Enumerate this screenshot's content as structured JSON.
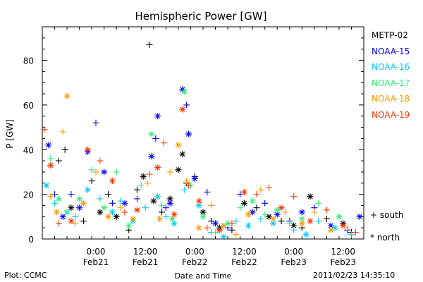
{
  "chart_data": {
    "type": "scatter",
    "title": "Hemispheric Power [GW]",
    "ylabel": "P [GW]",
    "xlabel": "Date and Time",
    "ylim": [
      0,
      95
    ],
    "yticks": [
      0,
      20,
      40,
      60,
      80
    ],
    "xlim": [
      "2011-02-20T11:00",
      "2011-02-23T17:00"
    ],
    "xticks": [
      {
        "time": "2011-02-21T00:00",
        "label1": "0:00",
        "label2": "Feb21"
      },
      {
        "time": "2011-02-21T12:00",
        "label1": "12:00",
        "label2": "Feb21"
      },
      {
        "time": "2011-02-22T00:00",
        "label1": "0:00",
        "label2": "Feb22"
      },
      {
        "time": "2011-02-22T12:00",
        "label1": "12:00",
        "label2": "Feb22"
      },
      {
        "time": "2011-02-23T00:00",
        "label1": "0:00",
        "label2": "Feb23"
      },
      {
        "time": "2011-02-23T12:00",
        "label1": "12:00",
        "label2": "Feb23"
      }
    ],
    "legend_position": "right",
    "symbol_key": {
      "south": "+ south",
      "north": "* north"
    },
    "series": [
      {
        "name": "METP-02",
        "color": "#000000",
        "points": [
          [
            "2011-02-20T15:00",
            35,
            "+"
          ],
          [
            "2011-02-20T16:30",
            40,
            "+"
          ],
          [
            "2011-02-20T18:00",
            14,
            "*"
          ],
          [
            "2011-02-20T21:00",
            8,
            "+"
          ],
          [
            "2011-02-20T23:00",
            26,
            "+"
          ],
          [
            "2011-02-21T01:00",
            12,
            "*"
          ],
          [
            "2011-02-21T03:00",
            20,
            "+"
          ],
          [
            "2011-02-21T05:00",
            10,
            "*"
          ],
          [
            "2011-02-21T08:00",
            4,
            "+"
          ],
          [
            "2011-02-21T10:00",
            22,
            "+"
          ],
          [
            "2011-02-21T11:30",
            28,
            "*"
          ],
          [
            "2011-02-21T13:00",
            87,
            "+"
          ],
          [
            "2011-02-21T14:00",
            17,
            "*"
          ],
          [
            "2011-02-21T16:00",
            12,
            "+"
          ],
          [
            "2011-02-21T18:00",
            18,
            "*"
          ],
          [
            "2011-02-21T20:00",
            31,
            "*"
          ],
          [
            "2011-02-21T21:00",
            38,
            "*"
          ],
          [
            "2011-02-21T22:00",
            25,
            "+"
          ],
          [
            "2011-02-22T00:00",
            28,
            "+"
          ],
          [
            "2011-02-22T02:00",
            12,
            "*"
          ],
          [
            "2011-02-22T04:00",
            8,
            "+"
          ],
          [
            "2011-02-22T06:00",
            5,
            "*"
          ],
          [
            "2011-02-22T09:00",
            4,
            "+"
          ],
          [
            "2011-02-22T12:00",
            16,
            "*"
          ],
          [
            "2011-02-22T15:00",
            14,
            "+"
          ],
          [
            "2011-02-22T18:00",
            10,
            "*"
          ],
          [
            "2011-02-22T21:00",
            8,
            "+"
          ],
          [
            "2011-02-23T00:00",
            6,
            "*"
          ],
          [
            "2011-02-23T02:00",
            5,
            "+"
          ],
          [
            "2011-02-23T04:00",
            19,
            "*"
          ],
          [
            "2011-02-23T08:00",
            9,
            "+"
          ],
          [
            "2011-02-23T12:00",
            7,
            "*"
          ],
          [
            "2011-02-23T14:00",
            3,
            "+"
          ]
        ]
      },
      {
        "name": "NOAA-15",
        "color": "#0000ff",
        "points": [
          [
            "2011-02-20T12:30",
            42,
            "*"
          ],
          [
            "2011-02-20T14:00",
            20,
            "+"
          ],
          [
            "2011-02-20T16:00",
            10,
            "*"
          ],
          [
            "2011-02-20T18:00",
            20,
            "+"
          ],
          [
            "2011-02-20T20:00",
            14,
            "*"
          ],
          [
            "2011-02-20T22:00",
            39,
            "*"
          ],
          [
            "2011-02-21T00:00",
            52,
            "+"
          ],
          [
            "2011-02-21T02:00",
            30,
            "*"
          ],
          [
            "2011-02-21T04:00",
            16,
            "+"
          ],
          [
            "2011-02-21T07:00",
            16,
            "*"
          ],
          [
            "2011-02-21T10:00",
            18,
            "+"
          ],
          [
            "2011-02-21T13:30",
            37,
            "*"
          ],
          [
            "2011-02-21T14:30",
            45,
            "+"
          ],
          [
            "2011-02-21T15:00",
            55,
            "*"
          ],
          [
            "2011-02-21T17:00",
            14,
            "+"
          ],
          [
            "2011-02-21T18:00",
            16,
            "*"
          ],
          [
            "2011-02-21T21:00",
            67,
            "*"
          ],
          [
            "2011-02-21T22:00",
            60,
            "+"
          ],
          [
            "2011-02-21T22:30",
            47,
            "*"
          ],
          [
            "2011-02-22T00:00",
            27,
            "*"
          ],
          [
            "2011-02-22T03:00",
            21,
            "+"
          ],
          [
            "2011-02-22T05:00",
            7,
            "*"
          ],
          [
            "2011-02-22T08:00",
            5,
            "+"
          ],
          [
            "2011-02-22T11:00",
            20,
            "+"
          ],
          [
            "2011-02-22T14:00",
            12,
            "*"
          ],
          [
            "2011-02-22T17:00",
            16,
            "+"
          ],
          [
            "2011-02-22T20:00",
            11,
            "*"
          ],
          [
            "2011-02-22T23:00",
            8,
            "+"
          ],
          [
            "2011-02-23T02:00",
            12,
            "*"
          ],
          [
            "2011-02-23T05:00",
            14,
            "+"
          ],
          [
            "2011-02-23T09:00",
            6,
            "*"
          ],
          [
            "2011-02-23T13:00",
            4,
            "+"
          ],
          [
            "2011-02-23T16:00",
            10,
            "*"
          ]
        ]
      },
      {
        "name": "NOAA-16",
        "color": "#00c8ff",
        "points": [
          [
            "2011-02-20T12:00",
            24,
            "*"
          ],
          [
            "2011-02-20T14:00",
            16,
            "+"
          ],
          [
            "2011-02-20T17:00",
            12,
            "*"
          ],
          [
            "2011-02-20T19:00",
            10,
            "+"
          ],
          [
            "2011-02-20T22:00",
            22,
            "*"
          ],
          [
            "2011-02-21T01:00",
            18,
            "+"
          ],
          [
            "2011-02-21T04:00",
            12,
            "*"
          ],
          [
            "2011-02-21T06:00",
            17,
            "+"
          ],
          [
            "2011-02-21T09:00",
            8,
            "*"
          ],
          [
            "2011-02-21T12:00",
            14,
            "+"
          ],
          [
            "2011-02-21T15:00",
            19,
            "*"
          ],
          [
            "2011-02-21T17:00",
            10,
            "+"
          ],
          [
            "2011-02-21T19:00",
            7,
            "*"
          ],
          [
            "2011-02-21T21:30",
            22,
            "+"
          ],
          [
            "2011-02-22T01:00",
            15,
            "*"
          ],
          [
            "2011-02-22T04:00",
            3,
            "+"
          ],
          [
            "2011-02-22T07:00",
            1,
            "*"
          ],
          [
            "2011-02-22T10:00",
            8,
            "+"
          ],
          [
            "2011-02-22T13:00",
            6,
            "*"
          ],
          [
            "2011-02-22T16:00",
            9,
            "+"
          ],
          [
            "2011-02-22T19:00",
            7,
            "*"
          ],
          [
            "2011-02-23T00:00",
            4,
            "+"
          ],
          [
            "2011-02-23T03:00",
            2,
            "*"
          ],
          [
            "2011-02-23T06:00",
            8,
            "+"
          ],
          [
            "2011-02-23T10:00",
            5,
            "*"
          ],
          [
            "2011-02-23T14:00",
            2,
            "+"
          ]
        ]
      },
      {
        "name": "NOAA-17",
        "color": "#33ee77",
        "points": [
          [
            "2011-02-20T13:00",
            36,
            "+"
          ],
          [
            "2011-02-20T15:00",
            18,
            "*"
          ],
          [
            "2011-02-20T17:00",
            12,
            "+"
          ],
          [
            "2011-02-20T20:00",
            18,
            "*"
          ],
          [
            "2011-02-20T23:00",
            31,
            "+"
          ],
          [
            "2011-02-21T02:00",
            14,
            "*"
          ],
          [
            "2011-02-21T05:00",
            30,
            "+"
          ],
          [
            "2011-02-21T08:00",
            6,
            "*"
          ],
          [
            "2011-02-21T11:00",
            24,
            "+"
          ],
          [
            "2011-02-21T13:30",
            47,
            "*"
          ],
          [
            "2011-02-21T16:00",
            15,
            "+"
          ],
          [
            "2011-02-21T18:30",
            9,
            "*"
          ],
          [
            "2011-02-21T21:30",
            66,
            "*"
          ],
          [
            "2011-02-21T23:00",
            24,
            "+"
          ],
          [
            "2011-02-22T02:00",
            10,
            "*"
          ],
          [
            "2011-02-22T05:00",
            3,
            "+"
          ],
          [
            "2011-02-22T08:00",
            7,
            "*"
          ],
          [
            "2011-02-22T11:00",
            14,
            "+"
          ],
          [
            "2011-02-22T14:00",
            17,
            "*"
          ],
          [
            "2011-02-22T17:00",
            11,
            "+"
          ],
          [
            "2011-02-22T20:00",
            13,
            "*"
          ],
          [
            "2011-02-22T23:00",
            7,
            "+"
          ],
          [
            "2011-02-23T02:00",
            9,
            "*"
          ],
          [
            "2011-02-23T06:00",
            16,
            "+"
          ],
          [
            "2011-02-23T11:00",
            10,
            "*"
          ]
        ]
      },
      {
        "name": "NOAA-18",
        "color": "#ff9900",
        "points": [
          [
            "2011-02-20T13:00",
            19,
            "+"
          ],
          [
            "2011-02-20T14:30",
            12,
            "*"
          ],
          [
            "2011-02-20T16:00",
            48,
            "+"
          ],
          [
            "2011-02-20T17:00",
            64,
            "*"
          ],
          [
            "2011-02-20T19:00",
            7,
            "+"
          ],
          [
            "2011-02-20T21:00",
            16,
            "*"
          ],
          [
            "2011-02-21T00:00",
            30,
            "+"
          ],
          [
            "2011-02-21T03:00",
            10,
            "*"
          ],
          [
            "2011-02-21T06:00",
            14,
            "+"
          ],
          [
            "2011-02-21T09:00",
            9,
            "*"
          ],
          [
            "2011-02-21T12:30",
            25,
            "+"
          ],
          [
            "2011-02-21T15:30",
            9,
            "*"
          ],
          [
            "2011-02-21T18:00",
            30,
            "+"
          ],
          [
            "2011-02-21T20:00",
            42,
            "*"
          ],
          [
            "2011-02-21T22:00",
            26,
            "+"
          ],
          [
            "2011-02-22T01:00",
            5,
            "*"
          ],
          [
            "2011-02-22T04:00",
            15,
            "+"
          ],
          [
            "2011-02-22T07:00",
            6,
            "*"
          ],
          [
            "2011-02-22T10:00",
            2,
            "+"
          ],
          [
            "2011-02-22T13:00",
            11,
            "*"
          ],
          [
            "2011-02-22T16:00",
            22,
            "+"
          ],
          [
            "2011-02-22T19:00",
            9,
            "*"
          ],
          [
            "2011-02-22T22:00",
            12,
            "+"
          ],
          [
            "2011-02-23T02:00",
            7,
            "*"
          ],
          [
            "2011-02-23T05:00",
            12,
            "+"
          ],
          [
            "2011-02-23T09:00",
            4,
            "*"
          ],
          [
            "2011-02-23T13:00",
            5,
            "+"
          ]
        ]
      },
      {
        "name": "NOAA-19",
        "color": "#ff3300",
        "points": [
          [
            "2011-02-20T11:30",
            49,
            "+"
          ],
          [
            "2011-02-20T13:00",
            33,
            "*"
          ],
          [
            "2011-02-20T15:00",
            7,
            "+"
          ],
          [
            "2011-02-20T18:00",
            8,
            "*"
          ],
          [
            "2011-02-20T22:00",
            40,
            "*"
          ],
          [
            "2011-02-21T01:00",
            35,
            "+"
          ],
          [
            "2011-02-21T04:00",
            26,
            "*"
          ],
          [
            "2011-02-21T07:00",
            12,
            "+"
          ],
          [
            "2011-02-21T10:00",
            13,
            "*"
          ],
          [
            "2011-02-21T13:00",
            29,
            "+"
          ],
          [
            "2011-02-21T15:00",
            32,
            "*"
          ],
          [
            "2011-02-21T16:30",
            43,
            "+"
          ],
          [
            "2011-02-21T19:00",
            11,
            "*"
          ],
          [
            "2011-02-21T21:00",
            58,
            "*"
          ],
          [
            "2011-02-21T22:30",
            24,
            "+"
          ],
          [
            "2011-02-22T01:00",
            17,
            "*"
          ],
          [
            "2011-02-22T03:00",
            5,
            "+"
          ],
          [
            "2011-02-22T06:00",
            4,
            "*"
          ],
          [
            "2011-02-22T09:00",
            7,
            "+"
          ],
          [
            "2011-02-22T12:00",
            21,
            "*"
          ],
          [
            "2011-02-22T15:00",
            20,
            "+"
          ],
          [
            "2011-02-22T18:00",
            23,
            "+"
          ],
          [
            "2011-02-22T21:00",
            14,
            "*"
          ],
          [
            "2011-02-23T00:00",
            19,
            "+"
          ],
          [
            "2011-02-23T04:00",
            8,
            "*"
          ],
          [
            "2011-02-23T08:00",
            13,
            "+"
          ],
          [
            "2011-02-23T12:00",
            6,
            "*"
          ],
          [
            "2011-02-23T15:00",
            3,
            "+"
          ]
        ]
      }
    ]
  },
  "footer": {
    "plot_source": "Plot: CCMC",
    "timestamp": "2011/02/23 14:35:10"
  }
}
